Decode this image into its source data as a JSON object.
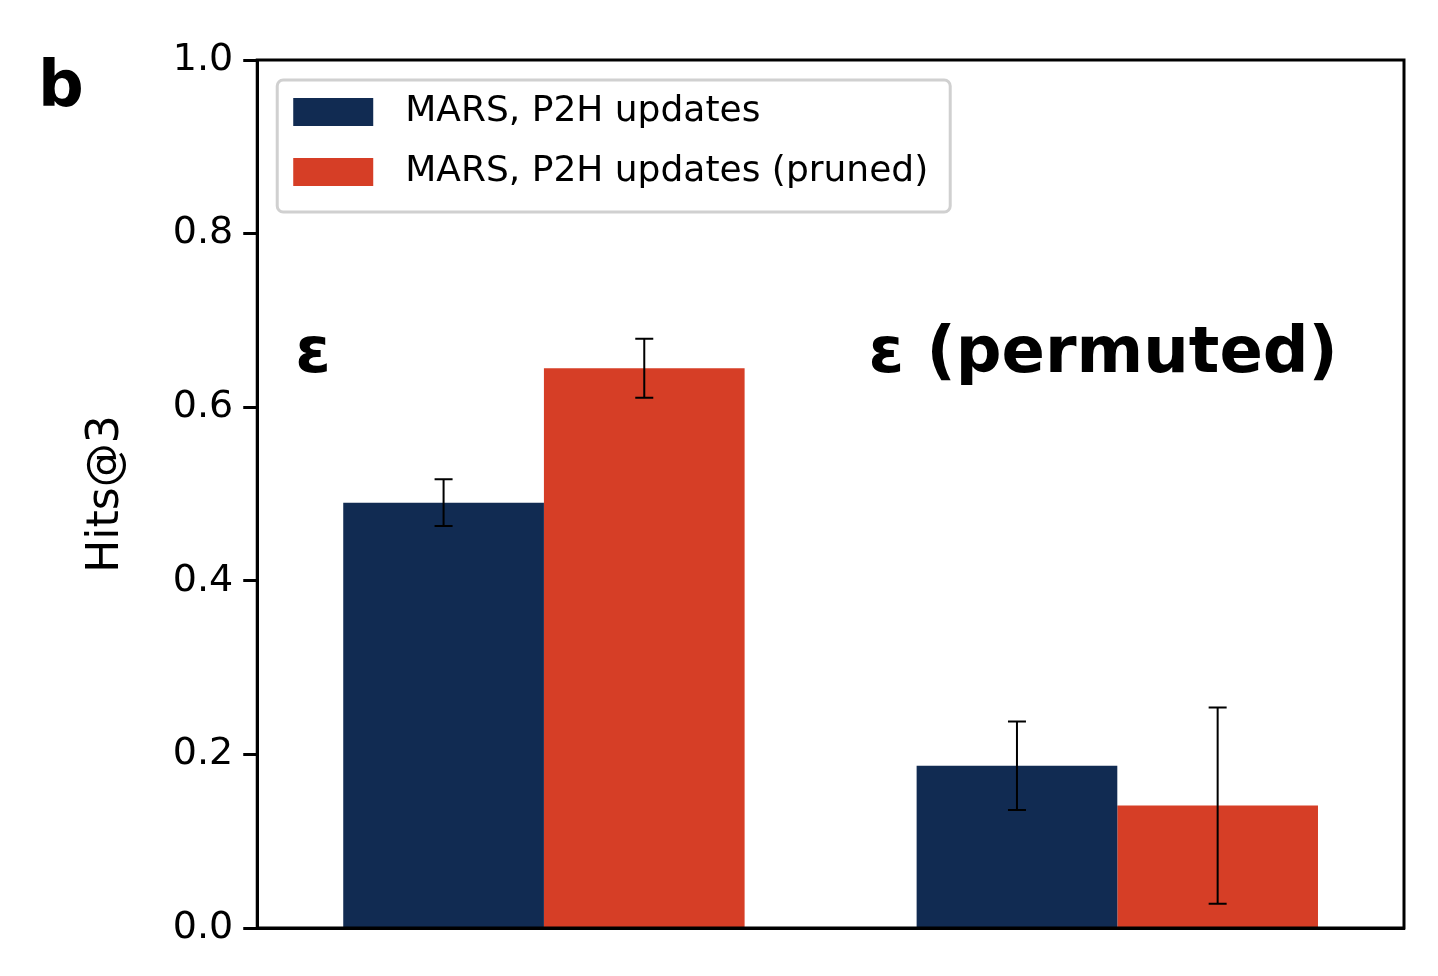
{
  "chart_data": {
    "type": "bar",
    "ylabel": "Hits@3",
    "categories": [
      null,
      null
    ],
    "series": [
      {
        "name": "MARS, P2H updates",
        "color": "#112b52",
        "values": [
          0.49,
          0.187
        ],
        "errors": [
          0.027,
          0.051
        ]
      },
      {
        "name": "MARS, P2H updates (pruned)",
        "color": "#d63e26",
        "values": [
          0.645,
          0.141
        ],
        "errors": [
          0.034,
          0.113
        ]
      }
    ],
    "ylim": [
      0,
      1
    ],
    "yticks": [
      {
        "value": 0,
        "label": "0.0"
      },
      0.2,
      0.4,
      0.6,
      0.8,
      {
        "value": 1,
        "label": "1.0"
      }
    ],
    "annotations": [
      "b",
      "ε",
      "ε (permuted)"
    ],
    "legend": "top left",
    "grid": false
  }
}
